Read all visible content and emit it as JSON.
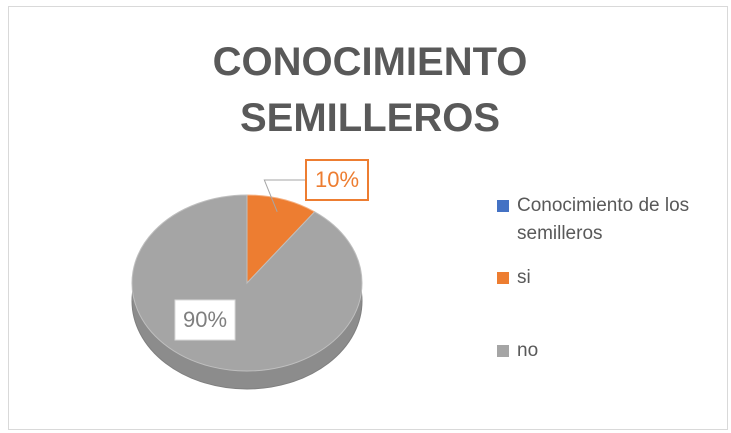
{
  "chart_data": {
    "type": "pie",
    "title": "CONOCIMIENTO SEMILLEROS",
    "categories": [
      "Conocimiento de los semilleros",
      "si",
      "no"
    ],
    "values": [
      null,
      10,
      90
    ],
    "value_labels": [
      null,
      "10%",
      "90%"
    ],
    "colors": [
      "#4472c4",
      "#ed7d31",
      "#a5a5a5"
    ],
    "legend": "right"
  }
}
